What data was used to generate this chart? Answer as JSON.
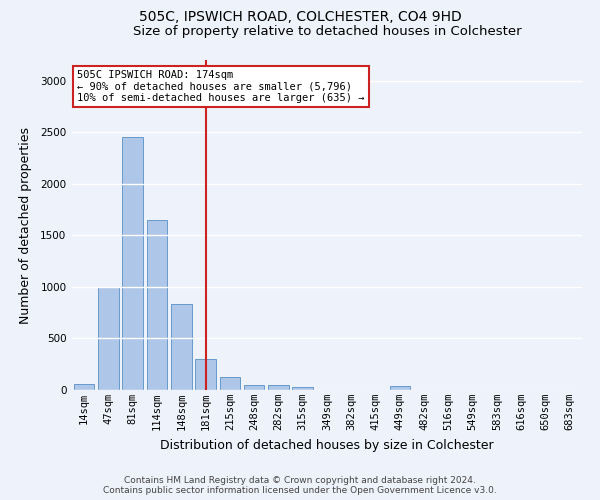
{
  "title_line1": "505C, IPSWICH ROAD, COLCHESTER, CO4 9HD",
  "title_line2": "Size of property relative to detached houses in Colchester",
  "xlabel": "Distribution of detached houses by size in Colchester",
  "ylabel": "Number of detached properties",
  "categories": [
    "14sqm",
    "47sqm",
    "81sqm",
    "114sqm",
    "148sqm",
    "181sqm",
    "215sqm",
    "248sqm",
    "282sqm",
    "315sqm",
    "349sqm",
    "382sqm",
    "415sqm",
    "449sqm",
    "482sqm",
    "516sqm",
    "549sqm",
    "583sqm",
    "616sqm",
    "650sqm",
    "683sqm"
  ],
  "values": [
    60,
    1000,
    2450,
    1650,
    830,
    300,
    130,
    50,
    45,
    25,
    0,
    0,
    0,
    35,
    0,
    0,
    0,
    0,
    0,
    0,
    0
  ],
  "bar_color": "#aec6e8",
  "bar_edge_color": "#6699cc",
  "vline_x": 5,
  "vline_color": "#cc2222",
  "annotation_box_text": "505C IPSWICH ROAD: 174sqm\n← 90% of detached houses are smaller (5,796)\n10% of semi-detached houses are larger (635) →",
  "annotation_box_edge_color": "#cc2222",
  "ylim": [
    0,
    3200
  ],
  "yticks": [
    0,
    500,
    1000,
    1500,
    2000,
    2500,
    3000
  ],
  "footer_line1": "Contains HM Land Registry data © Crown copyright and database right 2024.",
  "footer_line2": "Contains public sector information licensed under the Open Government Licence v3.0.",
  "background_color": "#eef2fa",
  "grid_color": "white",
  "title_fontsize": 10,
  "subtitle_fontsize": 9.5,
  "axis_label_fontsize": 9,
  "tick_fontsize": 7.5,
  "annotation_fontsize": 7.5,
  "footer_fontsize": 6.5
}
